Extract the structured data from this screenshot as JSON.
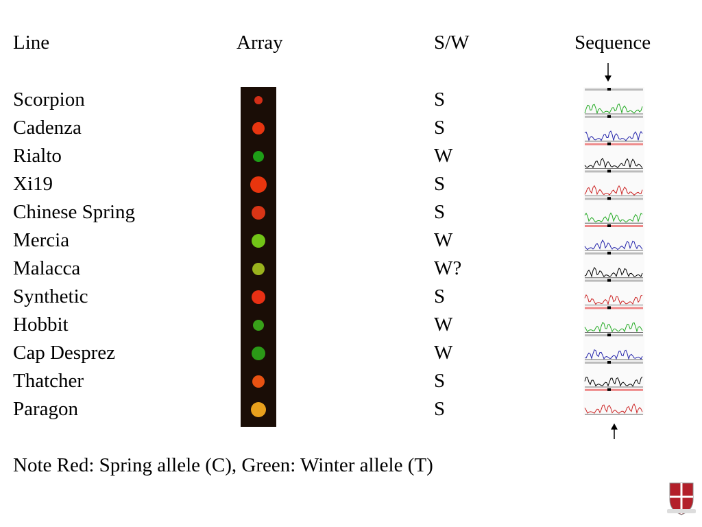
{
  "table": {
    "headers": [
      "Line",
      "Array",
      "S/W",
      "Sequence"
    ],
    "rows": [
      [
        "Scorpion",
        "S"
      ],
      [
        "Cadenza",
        "S"
      ],
      [
        "Rialto",
        "W"
      ],
      [
        "Xi19",
        "S"
      ],
      [
        "Chinese Spring",
        "S"
      ],
      [
        "Mercia",
        "W"
      ],
      [
        "Malacca",
        "W?"
      ],
      [
        "Synthetic",
        "S"
      ],
      [
        "Hobbit",
        "W"
      ],
      [
        "Cap Desprez",
        "W"
      ],
      [
        "Thatcher",
        "S"
      ],
      [
        "Paragon",
        "S"
      ]
    ]
  },
  "note": "Note Red:  Spring allele (C),  Green: Winter allele (T)"
}
